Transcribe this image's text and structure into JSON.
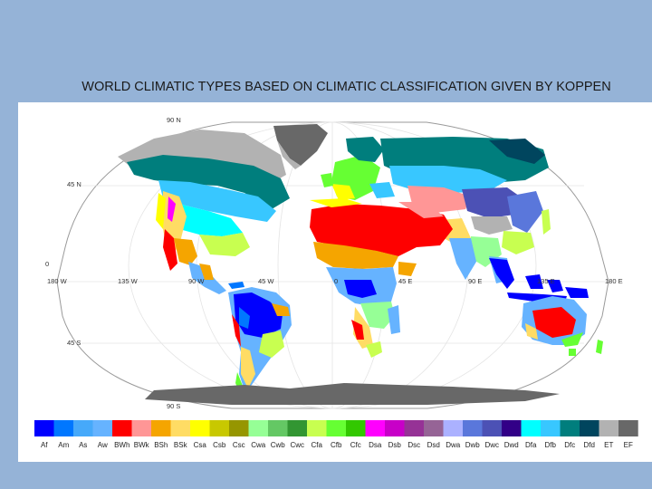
{
  "title": "WORLD CLIMATIC TYPES BASED ON CLIMATIC CLASSIFICATION GIVEN BY KOPPEN",
  "grid_labels": {
    "lat": [
      "90 N",
      "45 N",
      "0",
      "45 S",
      "90 S"
    ],
    "lon": [
      "180 W",
      "135 W",
      "90 W",
      "45 W",
      "0",
      "45 E",
      "90 E",
      "135 E",
      "180 E"
    ]
  },
  "legend": [
    {
      "code": "Af",
      "color": "#0000fe"
    },
    {
      "code": "Am",
      "color": "#0077ff"
    },
    {
      "code": "As",
      "color": "#46a9fa"
    },
    {
      "code": "Aw",
      "color": "#66b3ff"
    },
    {
      "code": "BWh",
      "color": "#fe0000"
    },
    {
      "code": "BWk",
      "color": "#ff9696"
    },
    {
      "code": "BSh",
      "color": "#f5a500"
    },
    {
      "code": "BSk",
      "color": "#ffdc64"
    },
    {
      "code": "Csa",
      "color": "#ffff00"
    },
    {
      "code": "Csb",
      "color": "#c8c800"
    },
    {
      "code": "Csc",
      "color": "#969600"
    },
    {
      "code": "Cwa",
      "color": "#96ff96"
    },
    {
      "code": "Cwb",
      "color": "#64c864"
    },
    {
      "code": "Cwc",
      "color": "#329632"
    },
    {
      "code": "Cfa",
      "color": "#c8ff50"
    },
    {
      "code": "Cfb",
      "color": "#66ff33"
    },
    {
      "code": "Cfc",
      "color": "#32c800"
    },
    {
      "code": "Dsa",
      "color": "#ff00fe"
    },
    {
      "code": "Dsb",
      "color": "#c800c8"
    },
    {
      "code": "Dsc",
      "color": "#963296"
    },
    {
      "code": "Dsd",
      "color": "#966496"
    },
    {
      "code": "Dwa",
      "color": "#abb1ff"
    },
    {
      "code": "Dwb",
      "color": "#5a77db"
    },
    {
      "code": "Dwc",
      "color": "#4c51b5"
    },
    {
      "code": "Dwd",
      "color": "#320087"
    },
    {
      "code": "Dfa",
      "color": "#00ffff"
    },
    {
      "code": "Dfb",
      "color": "#38c7ff"
    },
    {
      "code": "Dfc",
      "color": "#007e7d"
    },
    {
      "code": "Dfd",
      "color": "#00455e"
    },
    {
      "code": "ET",
      "color": "#b2b2b2"
    },
    {
      "code": "EF",
      "color": "#686868"
    }
  ]
}
